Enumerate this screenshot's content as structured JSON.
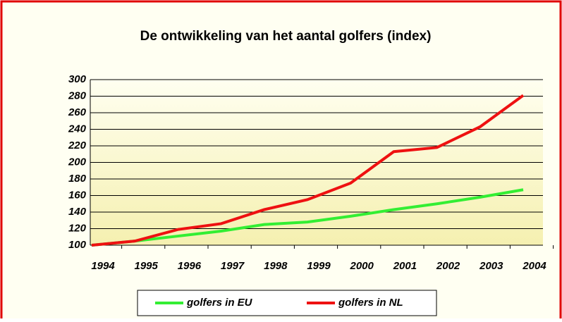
{
  "chart_data": {
    "type": "line",
    "title": "De ontwikkeling van het aantal golfers (index)",
    "categories": [
      "1994",
      "1995",
      "1996",
      "1997",
      "1998",
      "1999",
      "2000",
      "2001",
      "2002",
      "2003",
      "2004"
    ],
    "series": [
      {
        "name": "golfers in EU",
        "color": "#33ee33",
        "values": [
          100,
          105,
          111,
          117,
          125,
          128,
          135,
          143,
          150,
          158,
          167
        ]
      },
      {
        "name": "golfers in NL",
        "color": "#ee1111",
        "values": [
          100,
          105,
          119,
          126,
          143,
          155,
          175,
          213,
          218,
          243,
          281
        ]
      }
    ],
    "ylim": [
      100,
      300
    ],
    "yticks": [
      100,
      120,
      140,
      160,
      180,
      200,
      220,
      240,
      260,
      280,
      300
    ],
    "grid": true
  }
}
